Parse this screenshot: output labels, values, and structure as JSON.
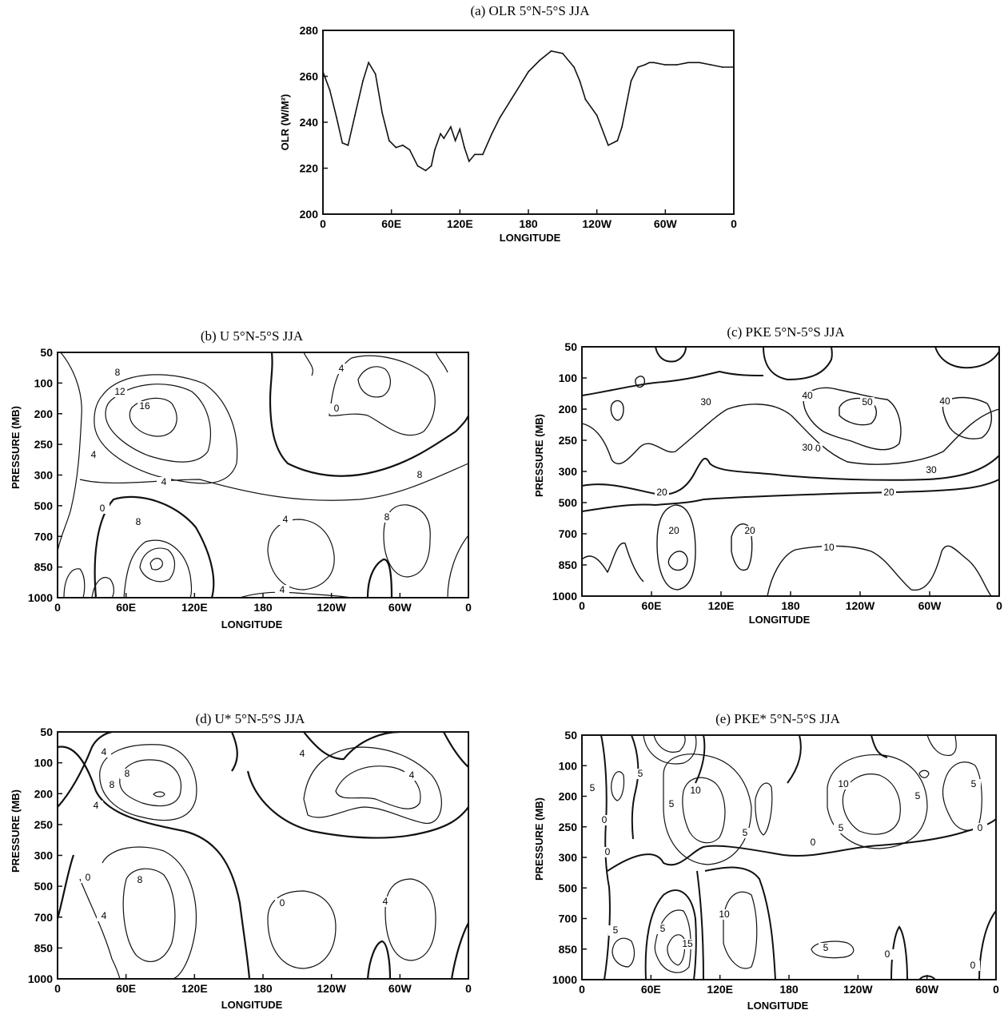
{
  "chart_data": [
    {
      "id": "a",
      "type": "line",
      "title": "(a)  OLR 5°N-5°S JJA",
      "xlabel": "LONGITUDE",
      "ylabel": "OLR (W/M²)",
      "xlim": [
        0,
        360
      ],
      "ylim": [
        200,
        280
      ],
      "x_ticks": [
        "0",
        "60E",
        "120E",
        "180",
        "120W",
        "60W",
        "0"
      ],
      "y_ticks": [
        "200",
        "220",
        "240",
        "260",
        "280"
      ],
      "x": [
        0,
        6,
        12,
        17,
        22,
        28,
        35,
        40,
        46,
        52,
        58,
        64,
        70,
        76,
        83,
        90,
        95,
        98,
        103,
        106,
        112,
        116,
        120,
        124,
        128,
        133,
        140,
        148,
        155,
        165,
        175,
        180,
        190,
        200,
        210,
        220,
        225,
        230,
        240,
        250,
        258,
        262,
        266,
        270,
        276,
        282,
        286,
        290,
        300,
        310,
        320,
        330,
        340,
        350,
        360
      ],
      "values": [
        262,
        254,
        242,
        231,
        230,
        243,
        258,
        266,
        261,
        244,
        232,
        229,
        230,
        228,
        221,
        219,
        221,
        228,
        235,
        233,
        238,
        232,
        237,
        229,
        223,
        226,
        226,
        235,
        242,
        250,
        258,
        262,
        267,
        271,
        270,
        264,
        258,
        250,
        243,
        230,
        232,
        238,
        248,
        258,
        264,
        265,
        266,
        266,
        265,
        265,
        266,
        266,
        265,
        264,
        264
      ]
    },
    {
      "id": "b",
      "type": "contour",
      "title": "(b)  U 5°N-5°S JJA",
      "xlabel": "LONGITUDE",
      "ylabel": "PRESSURE (MB)",
      "x_ticks": [
        "0",
        "60E",
        "120E",
        "180",
        "120W",
        "60W",
        "0"
      ],
      "y_ticks": [
        "50",
        "100",
        "200",
        "250",
        "300",
        "500",
        "700",
        "850",
        "1000"
      ],
      "contour_labels": [
        "8",
        "12",
        "16",
        "4",
        "0",
        "4",
        "8",
        "4",
        "0",
        "4",
        "8",
        "8",
        "4"
      ]
    },
    {
      "id": "c",
      "type": "contour",
      "title": "(c)  PKE 5°N-5°S JJA",
      "xlabel": "LONGITUDE",
      "ylabel": "PRESSURE (MB)",
      "x_ticks": [
        "0",
        "60E",
        "120E",
        "180",
        "120W",
        "60W",
        "0"
      ],
      "y_ticks": [
        "50",
        "100",
        "200",
        "250",
        "300",
        "500",
        "700",
        "850",
        "1000"
      ],
      "contour_labels": [
        "30",
        "40",
        "50",
        "40",
        "40",
        "30",
        "30",
        "20",
        "20",
        "20",
        "20",
        "10"
      ]
    },
    {
      "id": "d",
      "type": "contour",
      "title": "(d)  U* 5°N-5°S JJA",
      "xlabel": "LONGITUDE",
      "ylabel": "PRESSURE (MB)",
      "x_ticks": [
        "0",
        "60E",
        "120E",
        "180",
        "120W",
        "60W",
        "0"
      ],
      "y_ticks": [
        "50",
        "100",
        "200",
        "250",
        "300",
        "500",
        "700",
        "850",
        "1000"
      ],
      "contour_labels": [
        "4",
        "8",
        "8",
        "4",
        "0",
        "4",
        "8",
        "4",
        "0",
        "4",
        "4"
      ]
    },
    {
      "id": "e",
      "type": "contour",
      "title": "(e)  PKE* 5°N-5°S JJA",
      "xlabel": "LONGITUDE",
      "ylabel": "PRESSURE (MB)",
      "x_ticks": [
        "0",
        "60E",
        "120E",
        "180",
        "120W",
        "60W",
        "0"
      ],
      "y_ticks": [
        "50",
        "100",
        "200",
        "250",
        "300",
        "500",
        "700",
        "850",
        "1000"
      ],
      "contour_labels": [
        "5",
        "0",
        "5",
        "10",
        "5",
        "5",
        "10",
        "5",
        "5",
        "0",
        "0",
        "5",
        "10",
        "5",
        "5",
        "15",
        "0",
        "5",
        "0",
        "0"
      ]
    }
  ]
}
